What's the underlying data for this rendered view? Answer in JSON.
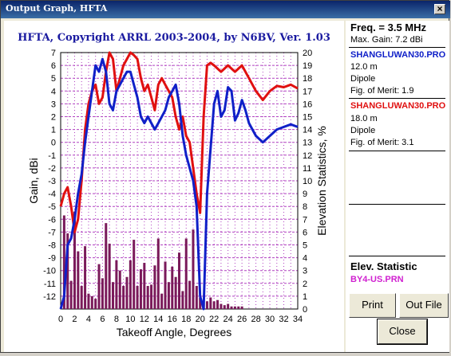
{
  "window": {
    "title": "Output Graph, HFTA",
    "close_glyph": "×"
  },
  "colors": {
    "titlebar": "#0a246a",
    "series1": "#e01010",
    "series2": "#1020c8",
    "stats": "#7a1a5a",
    "grid": "#b040c0"
  },
  "side": {
    "freq": "Freq. = 3.5 MHz",
    "max_gain": "Max. Gain: 7.2 dBi",
    "file1": {
      "name": "SHANGLUWAN30.PRO",
      "height": "12.0 m",
      "type": "Dipole",
      "merit": "Fig. of Merit:  1.9"
    },
    "file2": {
      "name": "SHANGLUWAN30.PRO",
      "height": "18.0 m",
      "type": "Dipole",
      "merit": "Fig. of Merit:  3.1"
    },
    "elev_title": "Elev. Statistic",
    "elev_file": "BY4-US.PRN",
    "print_label": "Print",
    "outfile_label": "Out File",
    "close_label": "Close"
  },
  "chart_data": {
    "type": "line",
    "title": "HFTA, Copyright ARRL 2003-2004, by N6BV, Ver. 1.03",
    "xlabel": "Takeoff Angle, Degrees",
    "ylabel": "Gain, dBi",
    "y2label": "Elevation Statistics, %",
    "xlim": [
      0,
      34
    ],
    "ylim": [
      -13,
      7
    ],
    "y2lim": [
      0,
      20
    ],
    "xticks": [
      "0",
      "2",
      "4",
      "6",
      "8",
      "10",
      "12",
      "14",
      "16",
      "18",
      "20",
      "22",
      "24",
      "26",
      "28",
      "30",
      "32",
      "34"
    ],
    "yticks": [
      "-12",
      "-11",
      "-10",
      "-9",
      "-8",
      "-7",
      "-6",
      "-5",
      "-4",
      "-3",
      "-2",
      "-1",
      "0",
      "1",
      "2",
      "3",
      "4",
      "5",
      "6",
      "7"
    ],
    "y2ticks": [
      "0",
      "1",
      "2",
      "3",
      "4",
      "5",
      "6",
      "7",
      "8",
      "9",
      "10",
      "11",
      "12",
      "13",
      "14",
      "15",
      "16",
      "17",
      "18",
      "19",
      "20"
    ],
    "grid": true,
    "series": [
      {
        "color": "#e01010",
        "x": [
          0,
          0.5,
          1,
          1.5,
          2,
          2.5,
          3,
          3.5,
          4,
          4.5,
          5,
          5.5,
          6,
          6.5,
          7,
          7.5,
          8,
          8.5,
          9,
          9.5,
          10,
          10.5,
          11,
          11.5,
          12,
          12.5,
          13,
          13.5,
          14,
          14.5,
          15,
          15.5,
          16,
          16.5,
          17,
          17.5,
          18,
          18.5,
          19,
          19.5,
          20,
          20.5,
          21,
          21.5,
          22,
          23,
          24,
          25,
          26,
          27,
          28,
          29,
          30,
          31,
          32,
          33,
          34
        ],
        "y": [
          -5,
          -4,
          -3.5,
          -5,
          -7,
          -6,
          -3,
          1,
          3,
          4,
          4.5,
          3,
          3.5,
          5.5,
          7,
          6.5,
          4,
          5,
          6,
          6.5,
          7,
          6.8,
          6.5,
          5,
          4,
          4.5,
          3.5,
          2.5,
          4.5,
          5,
          4.5,
          4,
          3.5,
          2,
          1,
          2,
          0.5,
          0,
          -2,
          -4,
          -5.5,
          2,
          6,
          6.2,
          6,
          5.5,
          6,
          5.5,
          6,
          5,
          4,
          3.3,
          4,
          4.4,
          4.3,
          4.5,
          4.2
        ]
      },
      {
        "color": "#1020c8",
        "x": [
          0,
          0.5,
          1,
          1.5,
          2,
          2.5,
          3,
          3.5,
          4,
          4.5,
          5,
          5.5,
          6,
          6.5,
          7,
          7.5,
          8,
          8.5,
          9,
          9.5,
          10,
          10.5,
          11,
          11.5,
          12,
          12.5,
          13,
          13.5,
          14,
          14.5,
          15,
          15.5,
          16,
          16.5,
          17,
          17.5,
          18,
          18.5,
          19,
          19.5,
          20,
          20.5,
          21,
          21.5,
          22,
          22.5,
          23,
          23.5,
          24,
          24.5,
          25,
          25.5,
          26,
          26.5,
          27,
          28,
          29,
          30,
          31,
          32,
          33,
          34
        ],
        "y": [
          -13,
          -12,
          -8,
          -7.5,
          -6,
          -4,
          -2.5,
          0,
          2,
          4,
          6,
          5.5,
          6.5,
          5.5,
          3,
          2.5,
          4,
          4.5,
          5,
          5.5,
          5.5,
          4.5,
          3.5,
          2,
          1.5,
          2,
          1.5,
          1,
          1.5,
          2,
          2.5,
          3.5,
          4,
          4.5,
          3,
          0.5,
          -1,
          -2,
          -3,
          -5,
          -12,
          -13,
          -4,
          -0.5,
          3,
          4,
          2,
          2.5,
          4.3,
          4,
          1.7,
          2.3,
          3.3,
          2.5,
          1.5,
          0.5,
          0,
          0.5,
          1,
          1.2,
          1.4,
          1.2
        ]
      },
      {
        "color": "#7a1a5a",
        "type": "bar",
        "x": [
          0.5,
          1,
          1.5,
          2,
          2.5,
          3,
          3.5,
          4,
          4.5,
          5,
          5.5,
          6,
          6.5,
          7,
          7.5,
          8,
          8.5,
          9,
          9.5,
          10,
          10.5,
          11,
          11.5,
          12,
          12.5,
          13,
          13.5,
          14,
          14.5,
          15,
          15.5,
          16,
          16.5,
          17,
          17.5,
          18,
          18.5,
          19,
          19.5,
          20,
          20.5,
          21,
          21.5,
          22,
          22.5,
          23,
          23.5,
          24,
          24.5,
          25,
          25.5,
          26
        ],
        "y": [
          7.3,
          5.9,
          2.2,
          7.6,
          4.5,
          1.8,
          4.9,
          1.2,
          1.0,
          0.8,
          3.5,
          2.4,
          6.7,
          5.1,
          2.1,
          3.8,
          3.0,
          1.8,
          2.5,
          3.8,
          5.4,
          1.8,
          3.1,
          3.6,
          1.8,
          1.9,
          3.4,
          5.5,
          1.2,
          3.7,
          2.1,
          3.3,
          2.5,
          4.4,
          1.4,
          5.5,
          2.2,
          6.2,
          1.8,
          0.9,
          0.4,
          0.6,
          0.9,
          0.6,
          0.7,
          0.4,
          0.3,
          0.4,
          0.2,
          0.2,
          0.2,
          0.2
        ]
      }
    ]
  }
}
